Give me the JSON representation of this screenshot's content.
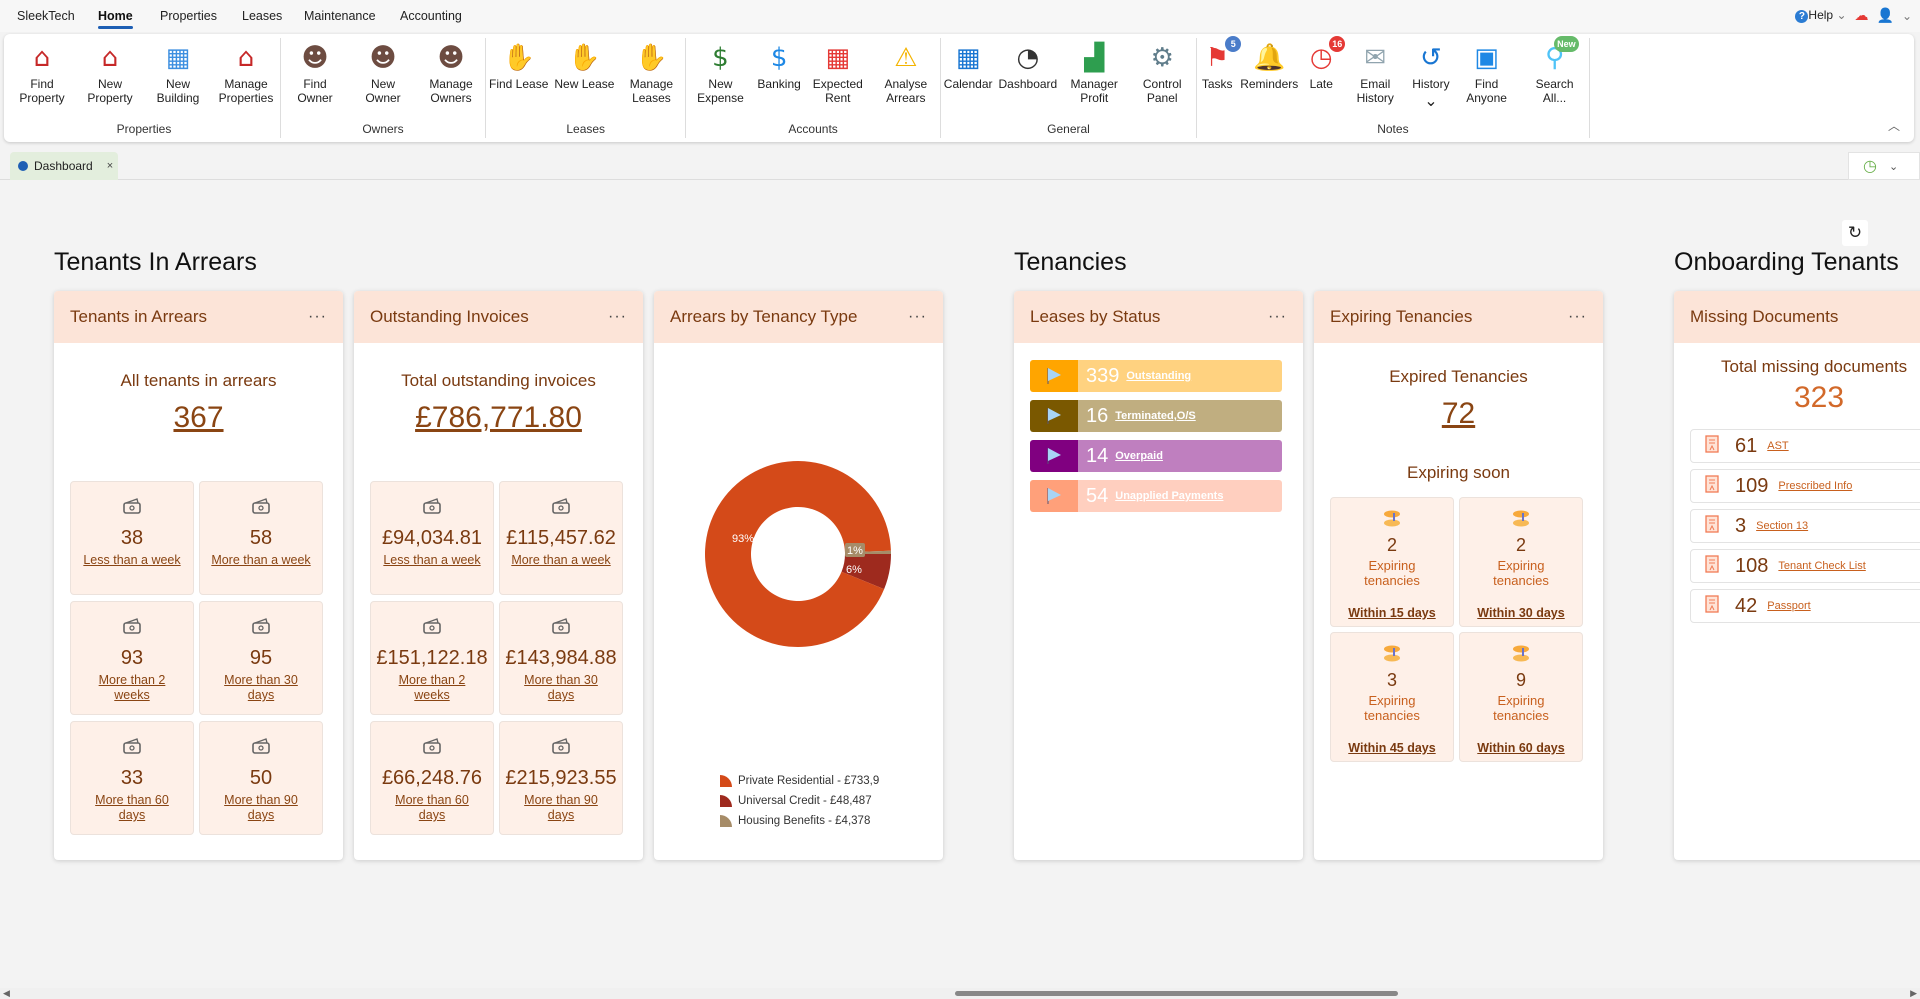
{
  "menu": {
    "brand": "SleekTech",
    "items": [
      "Home",
      "Properties",
      "Leases",
      "Maintenance",
      "Accounting"
    ],
    "active": "Home",
    "help": "Help"
  },
  "ribbon": {
    "groups": [
      {
        "label": "Properties",
        "buttons": [
          {
            "label": "Find Property",
            "icon": "find-property-icon"
          },
          {
            "label": "New Property",
            "icon": "new-property-icon"
          },
          {
            "label": "New Building",
            "icon": "new-building-icon"
          },
          {
            "label": "Manage Properties",
            "icon": "manage-properties-icon"
          }
        ]
      },
      {
        "label": "Owners",
        "buttons": [
          {
            "label": "Find Owner",
            "icon": "find-owner-icon"
          },
          {
            "label": "New Owner",
            "icon": "new-owner-icon"
          },
          {
            "label": "Manage Owners",
            "icon": "manage-owners-icon"
          }
        ]
      },
      {
        "label": "Leases",
        "buttons": [
          {
            "label": "Find Lease",
            "icon": "find-lease-icon"
          },
          {
            "label": "New Lease",
            "icon": "new-lease-icon"
          },
          {
            "label": "Manage Leases",
            "icon": "manage-leases-icon"
          }
        ]
      },
      {
        "label": "Accounts",
        "buttons": [
          {
            "label": "New Expense",
            "icon": "new-expense-icon"
          },
          {
            "label": "Banking",
            "icon": "bank-icon"
          },
          {
            "label": "Expected Rent",
            "icon": "calendar-money-icon"
          },
          {
            "label": "Analyse Arrears",
            "icon": "warning-clock-icon"
          }
        ]
      },
      {
        "label": "General",
        "buttons": [
          {
            "label": "Calendar",
            "icon": "calendar-icon"
          },
          {
            "label": "Dashboard",
            "icon": "gauge-icon"
          },
          {
            "label": "Manager Profit",
            "icon": "chart-up-icon"
          },
          {
            "label": "Control Panel",
            "icon": "gear-icon"
          }
        ]
      },
      {
        "label": "Notes",
        "buttons": [
          {
            "label": "Tasks",
            "icon": "flag-icon",
            "badge": "5",
            "badge_color": "#4a7cc9"
          },
          {
            "label": "Reminders",
            "icon": "bell-icon"
          },
          {
            "label": "Late",
            "icon": "clock-icon",
            "badge": "16",
            "badge_color": "#e53935"
          },
          {
            "label": "Email History",
            "icon": "email-clock-icon"
          },
          {
            "label": "History",
            "icon": "history-icon",
            "dropdown": "⌄"
          },
          {
            "label": "Find Anyone",
            "icon": "contact-search-icon"
          },
          {
            "label": "Search All...",
            "icon": "search-icon",
            "badge": "New",
            "badge_color": "#66bb6a"
          }
        ]
      }
    ]
  },
  "tab": {
    "label": "Dashboard",
    "close": "×"
  },
  "sections": {
    "arrears": "Tenants In Arrears",
    "tenancies": "Tenancies",
    "onboarding": "Onboarding Tenants"
  },
  "cards": {
    "arrears": {
      "title": "Tenants in Arrears",
      "more": "···",
      "subtitle": "All tenants in arrears",
      "total": "367",
      "tiles": [
        {
          "value": "38",
          "label": "Less than a week"
        },
        {
          "value": "58",
          "label": "More than a week"
        },
        {
          "value": "93",
          "label": "More than 2 weeks"
        },
        {
          "value": "95",
          "label": "More than 30 days"
        },
        {
          "value": "33",
          "label": "More than 60 days"
        },
        {
          "value": "50",
          "label": "More than 90 days"
        }
      ]
    },
    "invoices": {
      "title": "Outstanding Invoices",
      "more": "···",
      "subtitle": "Total outstanding invoices",
      "total": "£786,771.80",
      "tiles": [
        {
          "value": "£94,034.81",
          "label": "Less than a week"
        },
        {
          "value": "£115,457.62",
          "label": "More than a week"
        },
        {
          "value": "£151,122.18",
          "label": "More than 2 weeks"
        },
        {
          "value": "£143,984.88",
          "label": "More than 30 days"
        },
        {
          "value": "£66,248.76",
          "label": "More than 60 days"
        },
        {
          "value": "£215,923.55",
          "label": "More than 90 days"
        }
      ]
    },
    "tenancy_type": {
      "title": "Arrears by Tenancy Type",
      "more": "···"
    },
    "leases": {
      "title": "Leases by Status",
      "more": "···",
      "rows": [
        {
          "value": "339",
          "label": "Outstanding",
          "dark": "#ffa500",
          "light": "#ffd280"
        },
        {
          "value": "16",
          "label": "Terminated,O/S",
          "dark": "#7a5800",
          "light": "#c0ae80"
        },
        {
          "value": "14",
          "label": "Overpaid",
          "dark": "#800080",
          "light": "#bf7fbf"
        },
        {
          "value": "54",
          "label": "Unapplied Payments",
          "dark": "#ffa07a",
          "light": "#ffcfbf"
        }
      ]
    },
    "expiring": {
      "title": "Expiring Tenancies",
      "more": "···",
      "expired_label": "Expired Tenancies",
      "expired": "72",
      "soon_label": "Expiring soon",
      "tiles": [
        {
          "value": "2",
          "label": "Expiring tenancies",
          "window": "Within 15 days"
        },
        {
          "value": "2",
          "label": "Expiring tenancies",
          "window": "Within 30 days"
        },
        {
          "value": "3",
          "label": "Expiring tenancies",
          "window": "Within 45 days"
        },
        {
          "value": "9",
          "label": "Expiring tenancies",
          "window": "Within 60 days"
        }
      ]
    },
    "missing": {
      "title": "Missing Documents",
      "subtitle": "Total missing documents",
      "total": "323",
      "rows": [
        {
          "value": "61",
          "label": "AST"
        },
        {
          "value": "109",
          "label": "Prescribed Info"
        },
        {
          "value": "3",
          "label": "Section 13"
        },
        {
          "value": "108",
          "label": "Tenant Check List"
        },
        {
          "value": "42",
          "label": "Passport"
        }
      ]
    }
  },
  "chart_data": {
    "type": "pie",
    "donut": true,
    "title": "Arrears by Tenancy Type",
    "categories": [
      "Private Residential",
      "Universal Credit",
      "Housing Benefits"
    ],
    "values": [
      733906,
      48487,
      4378
    ],
    "percent_labels": [
      "93%",
      "6%",
      "1%"
    ],
    "legend": [
      "Private Residential - £733,9",
      "Universal Credit - £48,487",
      "Housing Benefits - £4,378"
    ],
    "colors": [
      "#d44a19",
      "#9e2a1e",
      "#a68c68"
    ],
    "legend_position": "bottom"
  }
}
